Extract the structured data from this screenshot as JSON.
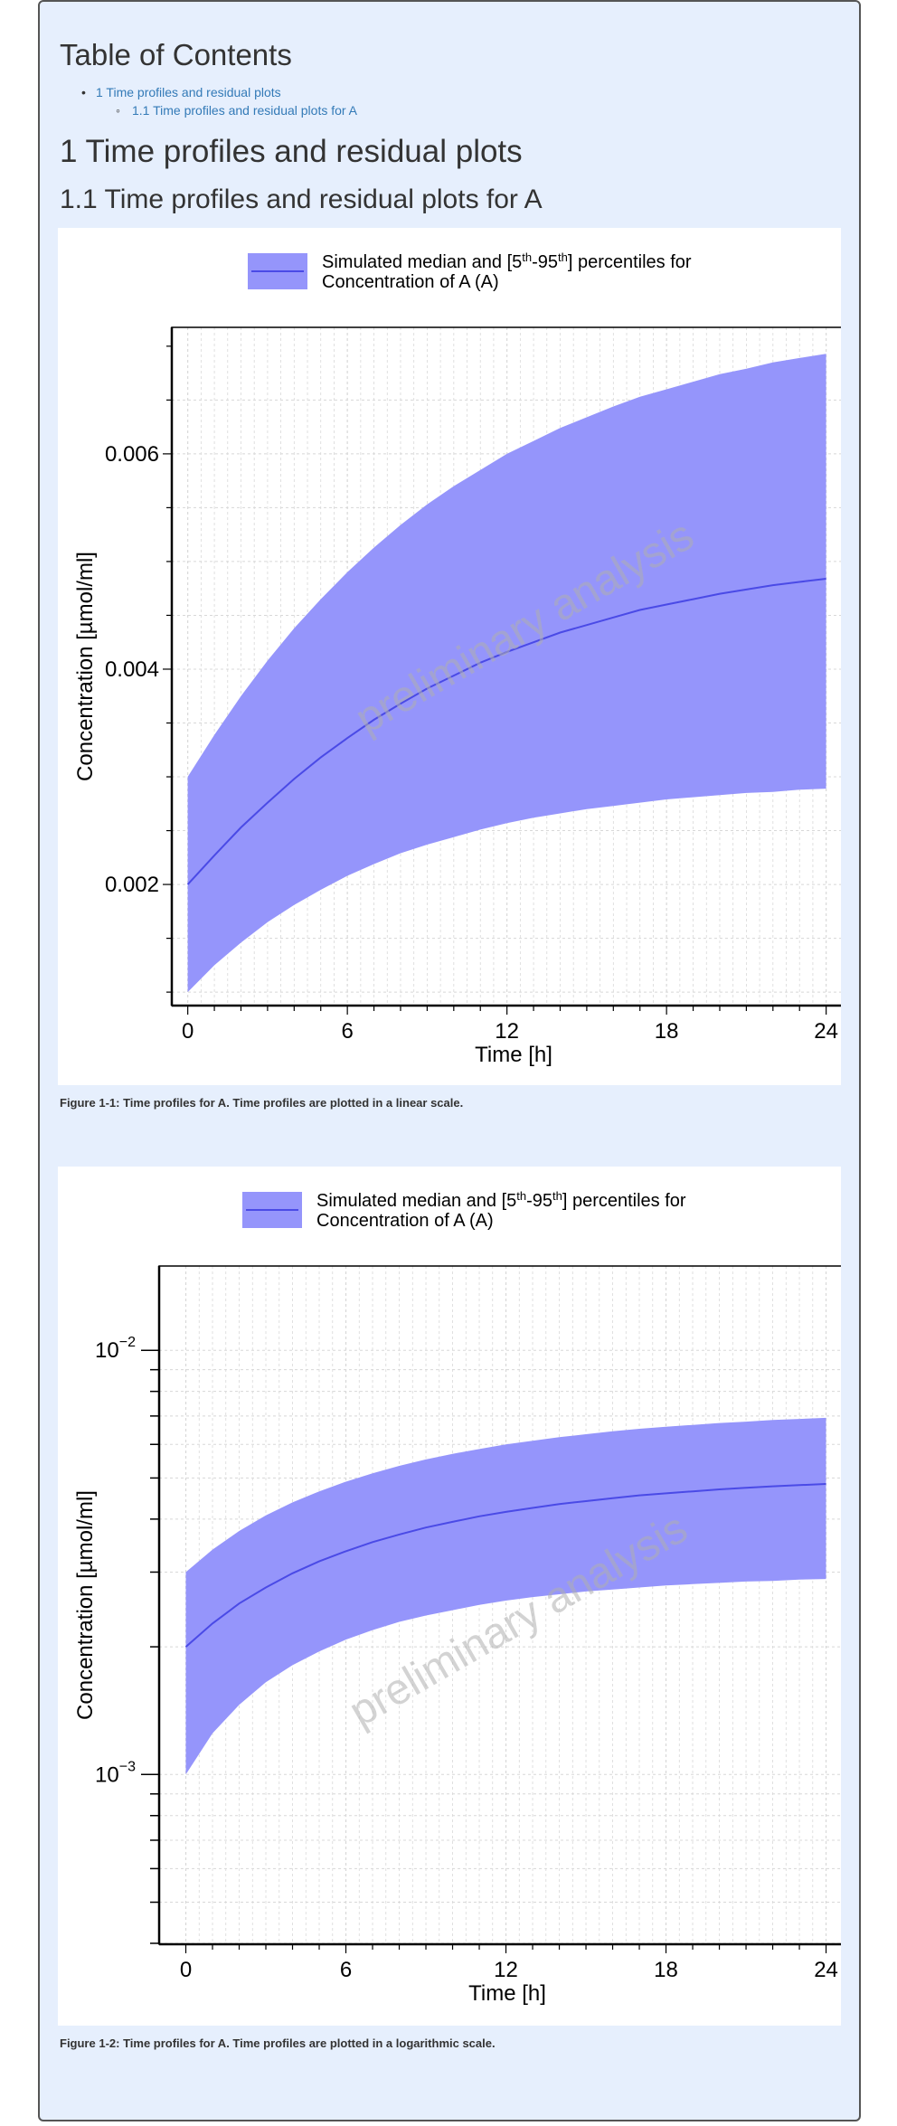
{
  "toc": {
    "title": "Table of Contents",
    "items": [
      {
        "label": "1 Time profiles and residual plots"
      },
      {
        "label": "1.1 Time profiles and residual plots for A"
      }
    ]
  },
  "section": {
    "h1": "1 Time profiles and residual plots",
    "h2": "1.1 Time profiles and residual plots for A"
  },
  "colors": {
    "ribbon": "#9595fb",
    "median_line": "#4a4ae6",
    "page_bg": "#e6effd"
  },
  "chart_data": [
    {
      "type": "area",
      "scale": "linear",
      "legend": {
        "line1_prefix": "Simulated median and [5",
        "sup1": "th",
        "mid": "-95",
        "sup2": "th",
        "line1_suffix": "] percentiles for",
        "line2": "Concentration of A (A)"
      },
      "xlabel": "Time [h]",
      "ylabel": "Concentration [µmol/ml]",
      "xlim": [
        -0.6,
        25.1
      ],
      "ylim": [
        0.000875,
        0.007175
      ],
      "xticks": [
        0,
        6,
        12,
        18,
        24
      ],
      "xtick_labels": [
        "0",
        "6",
        "12",
        "18",
        "24"
      ],
      "yticks": [
        0.002,
        0.004,
        0.006
      ],
      "ytick_labels": [
        "0.002",
        "0.004",
        "0.006"
      ],
      "grid": true,
      "legend_position": "top",
      "watermark": "preliminary analysis",
      "x": [
        0,
        1,
        2,
        3,
        4,
        5,
        6,
        7,
        8,
        9,
        10,
        11,
        12,
        13,
        14,
        15,
        16,
        17,
        18,
        19,
        20,
        21,
        22,
        23,
        24
      ],
      "series": [
        {
          "name": "median",
          "values": [
            0.002,
            0.00227,
            0.00253,
            0.00276,
            0.00298,
            0.00318,
            0.00336,
            0.00353,
            0.00368,
            0.00382,
            0.00394,
            0.00406,
            0.00416,
            0.00425,
            0.00434,
            0.00441,
            0.00448,
            0.00455,
            0.0046,
            0.00465,
            0.0047,
            0.00474,
            0.00478,
            0.00481,
            0.00484
          ]
        },
        {
          "name": "p5",
          "values": [
            0.001,
            0.00125,
            0.00146,
            0.00165,
            0.00181,
            0.00195,
            0.00208,
            0.00219,
            0.00229,
            0.00237,
            0.00244,
            0.00251,
            0.00257,
            0.00262,
            0.00266,
            0.0027,
            0.00273,
            0.00276,
            0.00279,
            0.00281,
            0.00283,
            0.00285,
            0.00286,
            0.00288,
            0.00289
          ]
        },
        {
          "name": "p95",
          "values": [
            0.003,
            0.00339,
            0.00375,
            0.00408,
            0.00438,
            0.00465,
            0.0049,
            0.00513,
            0.00534,
            0.00553,
            0.0057,
            0.00585,
            0.006,
            0.00612,
            0.00624,
            0.00634,
            0.00644,
            0.00653,
            0.0066,
            0.00667,
            0.00674,
            0.00679,
            0.00685,
            0.00689,
            0.00693
          ]
        }
      ],
      "caption": "Figure 1-1: Time profiles for A. Time profiles are plotted in a linear scale."
    },
    {
      "type": "area",
      "scale": "log",
      "legend": {
        "line1_prefix": "Simulated median and [5",
        "sup1": "th",
        "mid": "-95",
        "sup2": "th",
        "line1_suffix": "] percentiles for",
        "line2": "Concentration of A (A)"
      },
      "xlabel": "Time [h]",
      "ylabel": "Concentration [µmol/ml]",
      "xlim": [
        -1.0,
        25.1
      ],
      "ylim": [
        0.000398,
        0.0158
      ],
      "xticks": [
        0,
        6,
        12,
        18,
        24
      ],
      "xtick_labels": [
        "0",
        "6",
        "12",
        "18",
        "24"
      ],
      "yticks": [
        0.001,
        0.01
      ],
      "ytick_labels": [
        {
          "base": "10",
          "exp": "−3"
        },
        {
          "base": "10",
          "exp": "−2"
        }
      ],
      "grid": true,
      "legend_position": "top",
      "watermark": "preliminary analysis",
      "x": [
        0,
        1,
        2,
        3,
        4,
        5,
        6,
        7,
        8,
        9,
        10,
        11,
        12,
        13,
        14,
        15,
        16,
        17,
        18,
        19,
        20,
        21,
        22,
        23,
        24
      ],
      "series": [
        {
          "name": "median",
          "values": [
            0.002,
            0.00227,
            0.00253,
            0.00276,
            0.00298,
            0.00318,
            0.00336,
            0.00353,
            0.00368,
            0.00382,
            0.00394,
            0.00406,
            0.00416,
            0.00425,
            0.00434,
            0.00441,
            0.00448,
            0.00455,
            0.0046,
            0.00465,
            0.0047,
            0.00474,
            0.00478,
            0.00481,
            0.00484
          ]
        },
        {
          "name": "p5",
          "values": [
            0.001,
            0.00125,
            0.00146,
            0.00165,
            0.00181,
            0.00195,
            0.00208,
            0.00219,
            0.00229,
            0.00237,
            0.00244,
            0.00251,
            0.00257,
            0.00262,
            0.00266,
            0.0027,
            0.00273,
            0.00276,
            0.00279,
            0.00281,
            0.00283,
            0.00285,
            0.00286,
            0.00288,
            0.00289
          ]
        },
        {
          "name": "p95",
          "values": [
            0.003,
            0.00339,
            0.00375,
            0.00408,
            0.00438,
            0.00465,
            0.0049,
            0.00513,
            0.00534,
            0.00553,
            0.0057,
            0.00585,
            0.006,
            0.00612,
            0.00624,
            0.00634,
            0.00644,
            0.00653,
            0.0066,
            0.00667,
            0.00674,
            0.00679,
            0.00685,
            0.00689,
            0.00693
          ]
        }
      ],
      "caption": "Figure 1-2: Time profiles for A. Time profiles are plotted in a logarithmic scale."
    }
  ]
}
